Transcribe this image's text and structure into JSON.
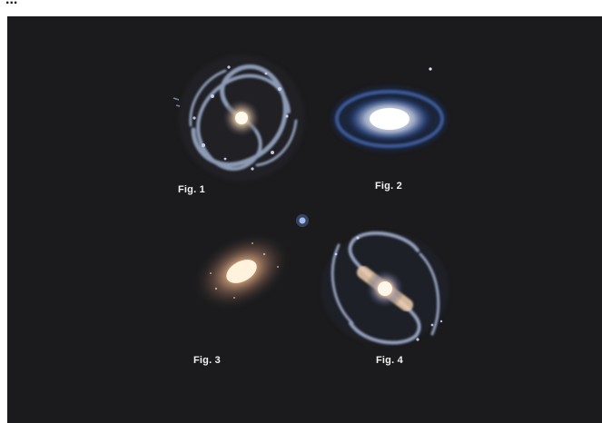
{
  "header": {
    "title_fragment": "..."
  },
  "figure": {
    "background_color": "#1b1b1d",
    "panels": [
      {
        "label": "Fig. 1",
        "subject": "face-on-spiral-galaxy"
      },
      {
        "label": "Fig. 2",
        "subject": "edge-tilted-elliptical-lenticular-galaxy"
      },
      {
        "label": "Fig. 3",
        "subject": "diffuse-elliptical-galaxy"
      },
      {
        "label": "Fig. 4",
        "subject": "barred-spiral-galaxy"
      }
    ]
  }
}
